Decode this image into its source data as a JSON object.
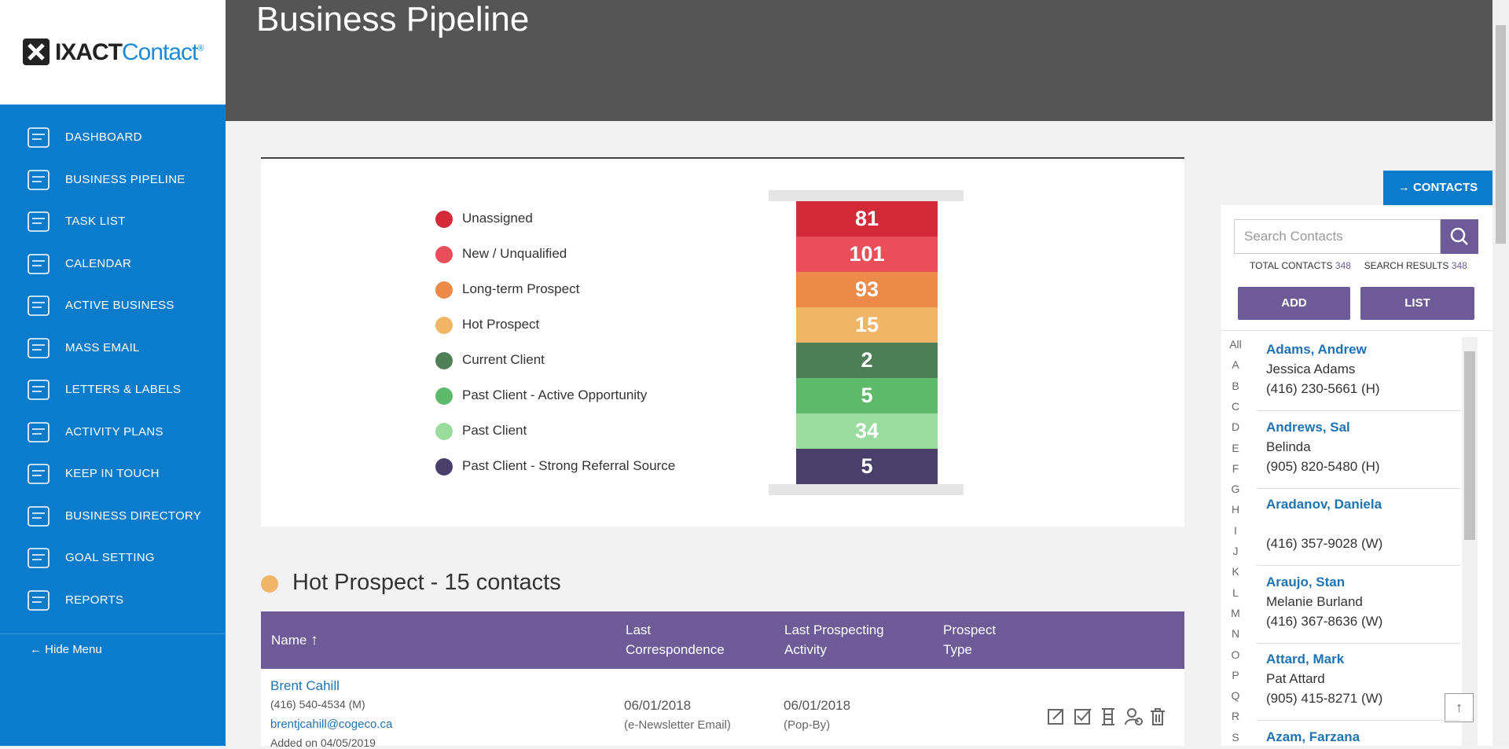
{
  "brand": {
    "name_a": "IXACT",
    "name_b": "Contact",
    "mark": "®"
  },
  "sidebar": {
    "menu": [
      "DASHBOARD",
      "BUSINESS PIPELINE",
      "TASK LIST",
      "CALENDAR",
      "ACTIVE BUSINESS",
      "MASS EMAIL",
      "LETTERS & LABELS",
      "ACTIVITY PLANS",
      "KEEP IN TOUCH",
      "BUSINESS DIRECTORY",
      "GOAL SETTING",
      "REPORTS"
    ],
    "hide_menu": "Hide Menu"
  },
  "header": {
    "title": "Business Pipeline"
  },
  "pipeline": {
    "stages": [
      {
        "label": "Unassigned",
        "count": 81,
        "color": "#d32a3a"
      },
      {
        "label": "New / Unqualified",
        "count": 101,
        "color": "#e84f5a"
      },
      {
        "label": "Long-term Prospect",
        "count": 93,
        "color": "#ec8a4a"
      },
      {
        "label": "Hot Prospect",
        "count": 15,
        "color": "#f0b566"
      },
      {
        "label": "Current Client",
        "count": 2,
        "color": "#4e7f56"
      },
      {
        "label": "Past Client - Active Opportunity",
        "count": 5,
        "color": "#5fb96b"
      },
      {
        "label": "Past Client",
        "count": 34,
        "color": "#9cdb9e"
      },
      {
        "label": "Past Client - Strong Referral Source",
        "count": 5,
        "color": "#4a3f6b"
      }
    ]
  },
  "section": {
    "title": "Hot Prospect - 15 contacts",
    "color": "#f0b566"
  },
  "table": {
    "headers": [
      "Name",
      "Last Correspondence",
      "Last Prospecting Activity",
      "Prospect Type"
    ],
    "rows": [
      {
        "name": "Brent Cahill",
        "phone": "(416) 540-4534 (M)",
        "email": "brentjcahill@cogeco.ca",
        "added": "Added on 04/05/2019",
        "correspondence_date": "06/01/2018",
        "correspondence_type": "(e-Newsletter Email)",
        "prospecting_date": "06/01/2018",
        "prospecting_type": "(Pop-By)"
      }
    ]
  },
  "contacts_panel": {
    "button": "CONTACTS",
    "search_placeholder": "Search Contacts",
    "total_label": "TOTAL CONTACTS",
    "total": 348,
    "results_label": "SEARCH RESULTS",
    "results": 348,
    "add": "ADD",
    "list": "LIST",
    "letters": [
      "All",
      "A",
      "B",
      "C",
      "D",
      "E",
      "F",
      "G",
      "H",
      "I",
      "J",
      "K",
      "L",
      "M",
      "N",
      "O",
      "P",
      "Q",
      "R",
      "S"
    ],
    "contacts": [
      {
        "name": "Adams, Andrew",
        "sub": "Jessica Adams",
        "phone": "(416) 230-5661 (H)"
      },
      {
        "name": "Andrews, Sal",
        "sub": "Belinda",
        "phone": "(905) 820-5480 (H)"
      },
      {
        "name": "Aradanov, Daniela",
        "phone": "(416) 357-9028 (W)"
      },
      {
        "name": "Araujo, Stan",
        "sub": "Melanie Burland",
        "phone": "(416) 367-8636 (W)"
      },
      {
        "name": "Attard, Mark",
        "sub": "Pat Attard",
        "phone": "(905) 415-8271 (W)"
      },
      {
        "name": "Azam, Farzana"
      }
    ]
  }
}
